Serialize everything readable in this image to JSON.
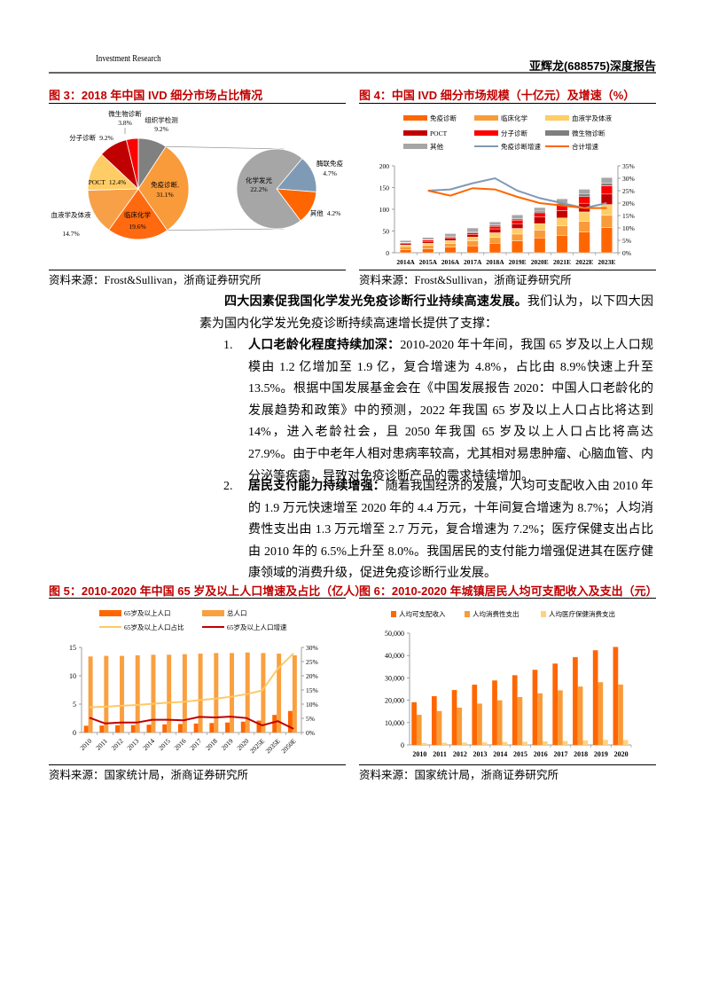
{
  "header": {
    "left": "Investment Research",
    "right": "亚辉龙(688575)深度报告"
  },
  "fig3": {
    "title": "图 3：2018 年中国 IVD 细分市场占比情况",
    "source": "资料来源：Frost&Sullivan，浙商证券研究所"
  },
  "fig4": {
    "title": "图 4：中国 IVD 细分市场规模（十亿元）及增速（%）",
    "source": "资料来源：Frost&Sullivan，浙商证券研究所"
  },
  "fig5": {
    "title": "图 5：2010-2020 年中国 65 岁及以上人口增速及占比（亿人）",
    "source": "资料来源：国家统计局，浙商证券研究所"
  },
  "fig6": {
    "title": "图 6：2010-2020 年城镇居民人均可支配收入及支出（元）",
    "source": "资料来源：国家统计局，浙商证券研究所"
  },
  "body": {
    "intro_bold": "四大因素促我国化学发光免疫诊断行业持续高速发展。",
    "intro_rest": "我们认为，以下四大因素为国内化学发光免疫诊断持续高速增长提供了支撑：",
    "items": [
      {
        "num": "1.",
        "bold": "人口老龄化程度持续加深：",
        "text": "2010-2020 年十年间，我国 65 岁及以上人口规模由 1.2 亿增加至 1.9 亿，复合增速为 4.8%，占比由 8.9%快速上升至 13.5%。根据中国发展基金会在《中国发展报告 2020：中国人口老龄化的发展趋势和政策》中的预测，2022 年我国 65 岁及以上人口占比将达到 14%，进入老龄社会，且 2050 年我国 65 岁及以上人口占比将高达 27.9%。由于中老年人相对患病率较高，尤其相对易患肿瘤、心脑血管、内分泌等疾病，导致对免疫诊断产品的需求持续增加。"
      },
      {
        "num": "2.",
        "bold": "居民支付能力持续增强：",
        "text": "随着我国经济的发展，人均可支配收入由 2010 年的 1.9 万元快速增至 2020 年的 4.4 万元，十年间复合增速为 8.7%；人均消费性支出由 1.3 万元增至 2.7 万元，复合增速为 7.2%；医疗保健支出占比由 2010 年的 6.5%上升至 8.0%。我国居民的支付能力增强促进其在医疗健康领域的消费升级，促进免疫诊断行业发展。"
      }
    ]
  },
  "chart_data": [
    {
      "type": "pie",
      "title": "图 3：2018 年中国 IVD 细分市场占比情况",
      "slices": [
        {
          "label": "组织学检测",
          "value": 9.2,
          "color": "#808080"
        },
        {
          "label": "免疫诊断,",
          "value": 31.1,
          "color": "#F99B3A"
        },
        {
          "label": "临床化学",
          "value": 19.6,
          "color": "#FF6A10"
        },
        {
          "label": "血液学及体液",
          "value": 14.7,
          "color": "#F8A048"
        },
        {
          "label": "POCT",
          "value": 12.4,
          "color": "#FFCC66"
        },
        {
          "label": "分子诊断",
          "value": 9.2,
          "color": "#C00000"
        },
        {
          "label": "微生物诊断",
          "value": 3.8,
          "color": "#FF0000"
        }
      ],
      "sub_slices": [
        {
          "label": "酶联免疫",
          "value": 4.7,
          "color": "#7F9AB5"
        },
        {
          "label": "其他",
          "value": 4.2,
          "color": "#FF6600"
        },
        {
          "label": "化学发光",
          "value": 22.2,
          "color": "#A6A6A6"
        }
      ],
      "value_labels": {
        "组织学检测": "9.2%",
        "免疫诊断,": "31.1%",
        "临床化学": "19.6%",
        "血液学及体液": "14.7%",
        "POCT": "12.4%",
        "分子诊断": "9.2%",
        "微生物诊断": "3.8%",
        "酶联免疫": "4.7%",
        "其他": "4.2%",
        "化学发光": "22.2%"
      }
    },
    {
      "type": "bar",
      "stacked": true,
      "categories": [
        "2014A",
        "2015A",
        "2016A",
        "2017A",
        "2018A",
        "2019E",
        "2020E",
        "2021E",
        "2022E",
        "2023E"
      ],
      "ylim": [
        0,
        200
      ],
      "yticks": [
        "0",
        "50",
        "100",
        "150",
        "200"
      ],
      "y2lim": [
        0,
        35
      ],
      "y2ticks": [
        "0%",
        "5%",
        "10%",
        "15%",
        "20%",
        "25%",
        "30%",
        "35%"
      ],
      "legend": "top",
      "grid": false,
      "series": [
        {
          "name": "免疫诊断",
          "color": "#FF6600",
          "values": [
            7,
            9,
            13,
            16,
            22,
            27,
            34,
            40,
            48,
            58
          ]
        },
        {
          "name": "临床化学",
          "color": "#F99B3A",
          "values": [
            7,
            8,
            8,
            11,
            13,
            16,
            18,
            22,
            24,
            28
          ]
        },
        {
          "name": "血液学及体液",
          "color": "#FFCC66",
          "values": [
            4,
            5,
            7,
            9,
            11,
            13,
            15,
            18,
            22,
            25
          ]
        },
        {
          "name": "POCT",
          "color": "#C00000",
          "values": [
            3,
            4,
            5,
            6,
            9,
            11,
            15,
            17,
            20,
            24
          ]
        },
        {
          "name": "分子诊断",
          "color": "#FF0000",
          "values": [
            2,
            3,
            3,
            4,
            6,
            8,
            10,
            12,
            15,
            19
          ]
        },
        {
          "name": "微生物诊断",
          "color": "#7F7F7F",
          "values": [
            1,
            1,
            2,
            2,
            3,
            3,
            4,
            5,
            6,
            6
          ]
        },
        {
          "name": "其他",
          "color": "#A6A6A6",
          "values": [
            4,
            5,
            6,
            9,
            7,
            9,
            8,
            10,
            11,
            13
          ]
        }
      ],
      "lines": [
        {
          "name": "免疫诊断增速",
          "color": "#7F9AB5",
          "values": [
            null,
            25,
            25.5,
            28,
            30,
            25,
            22,
            20,
            18,
            20
          ]
        },
        {
          "name": "合计增速",
          "color": "#FF6600",
          "values": [
            null,
            25,
            23,
            26,
            25.5,
            22.5,
            20,
            19,
            18,
            18
          ]
        }
      ]
    },
    {
      "type": "bar",
      "categories": [
        "2010",
        "2011",
        "2012",
        "2013",
        "2014",
        "2015",
        "2016",
        "2017",
        "2018",
        "2019",
        "2020",
        "2025E",
        "2035E",
        "2050E"
      ],
      "ylim": [
        0,
        15
      ],
      "yticks": [
        "0",
        "5",
        "10",
        "15"
      ],
      "y2lim": [
        0,
        30
      ],
      "y2ticks": [
        "0%",
        "5%",
        "10%",
        "15%",
        "20%",
        "25%",
        "30%"
      ],
      "legend": "top",
      "grid": false,
      "series": [
        {
          "name": "65岁及以上人口",
          "color": "#FF6600",
          "values": [
            1.19,
            1.23,
            1.27,
            1.31,
            1.38,
            1.44,
            1.5,
            1.58,
            1.67,
            1.76,
            1.91,
            2.1,
            3.1,
            3.8
          ]
        },
        {
          "name": "总人口",
          "color": "#F9A040",
          "values": [
            13.4,
            13.5,
            13.5,
            13.6,
            13.7,
            13.7,
            13.8,
            13.9,
            14.0,
            14.0,
            14.1,
            14.0,
            13.9,
            13.6
          ]
        }
      ],
      "lines": [
        {
          "name": "65岁及以上人口占比",
          "color": "#FFC869",
          "values": [
            8.9,
            9.1,
            9.4,
            9.7,
            10.1,
            10.5,
            10.8,
            11.4,
            11.9,
            12.6,
            13.5,
            14.8,
            22.5,
            27.9
          ]
        },
        {
          "name": "65岁及以上人口增速",
          "color": "#C00000",
          "values": [
            5.2,
            3.2,
            3.5,
            3.5,
            4.5,
            4.5,
            4.3,
            5.5,
            5.3,
            5.6,
            5.1,
            2.5,
            4.0,
            1.3
          ]
        }
      ]
    },
    {
      "type": "bar",
      "categories": [
        "2010",
        "2011",
        "2012",
        "2013",
        "2014",
        "2015",
        "2016",
        "2017",
        "2018",
        "2019",
        "2020"
      ],
      "ylim": [
        0,
        50000
      ],
      "yticks": [
        "0",
        "10,000",
        "20,000",
        "30,000",
        "40,000",
        "50,000"
      ],
      "legend": "top",
      "grid": false,
      "series": [
        {
          "name": "人均可支配收入",
          "color": "#FF6600",
          "values": [
            19109,
            21810,
            24565,
            26955,
            28844,
            31195,
            33616,
            36396,
            39251,
            42359,
            43834
          ]
        },
        {
          "name": "人均消费性支出",
          "color": "#F99B3A",
          "values": [
            13471,
            15161,
            16674,
            18488,
            19968,
            21392,
            23079,
            24445,
            26112,
            28063,
            27007
          ]
        },
        {
          "name": "人均医疗保健消费支出",
          "color": "#FFD27F",
          "values": [
            871,
            969,
            1064,
            1136,
            1306,
            1443,
            1631,
            1777,
            2046,
            2283,
            2172
          ]
        }
      ]
    }
  ]
}
